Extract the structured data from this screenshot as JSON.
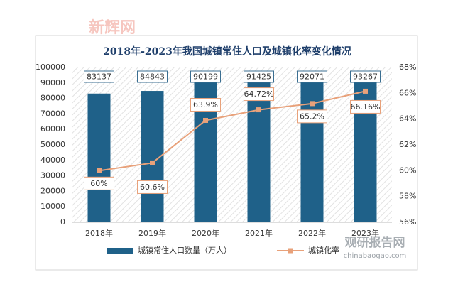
{
  "chart_data": {
    "type": "bar",
    "title": "2018年-2023年我国城镇常住人口及城镇化率变化情况",
    "watermarks": [
      "新辉网",
      "观研报告网",
      "chinabaogao.com"
    ],
    "categories": [
      "2018年",
      "2019年",
      "2020年",
      "2021年",
      "2022年",
      "2023年"
    ],
    "series": [
      {
        "name": "城镇常住人口数量（万人）",
        "type": "bar",
        "color": "#1f6189",
        "values": [
          83137,
          84843,
          90199,
          91425,
          92071,
          93267
        ]
      },
      {
        "name": "城镇化率",
        "type": "line",
        "axis": "y2",
        "color": "#e8a17a",
        "values": [
          60,
          60.6,
          63.9,
          64.72,
          65.2,
          66.16
        ],
        "value_labels": [
          "60%",
          "60.6%",
          "63.9%",
          "64.72%",
          "65.2%",
          "66.16%"
        ]
      }
    ],
    "ylim": [
      0,
      100000
    ],
    "yticks": [
      0,
      10000,
      20000,
      30000,
      40000,
      50000,
      60000,
      70000,
      80000,
      90000,
      100000
    ],
    "y2lim": [
      56,
      68
    ],
    "y2ticks": [
      {
        "value": 56,
        "label": "56%"
      },
      {
        "value": 58,
        "label": "58%"
      },
      {
        "value": 60,
        "label": "60%"
      },
      {
        "value": 62,
        "label": "62%"
      },
      {
        "value": 64,
        "label": "64%"
      },
      {
        "value": 66,
        "label": "66%"
      },
      {
        "value": 68,
        "label": "68%"
      }
    ],
    "legend": "bottom"
  }
}
